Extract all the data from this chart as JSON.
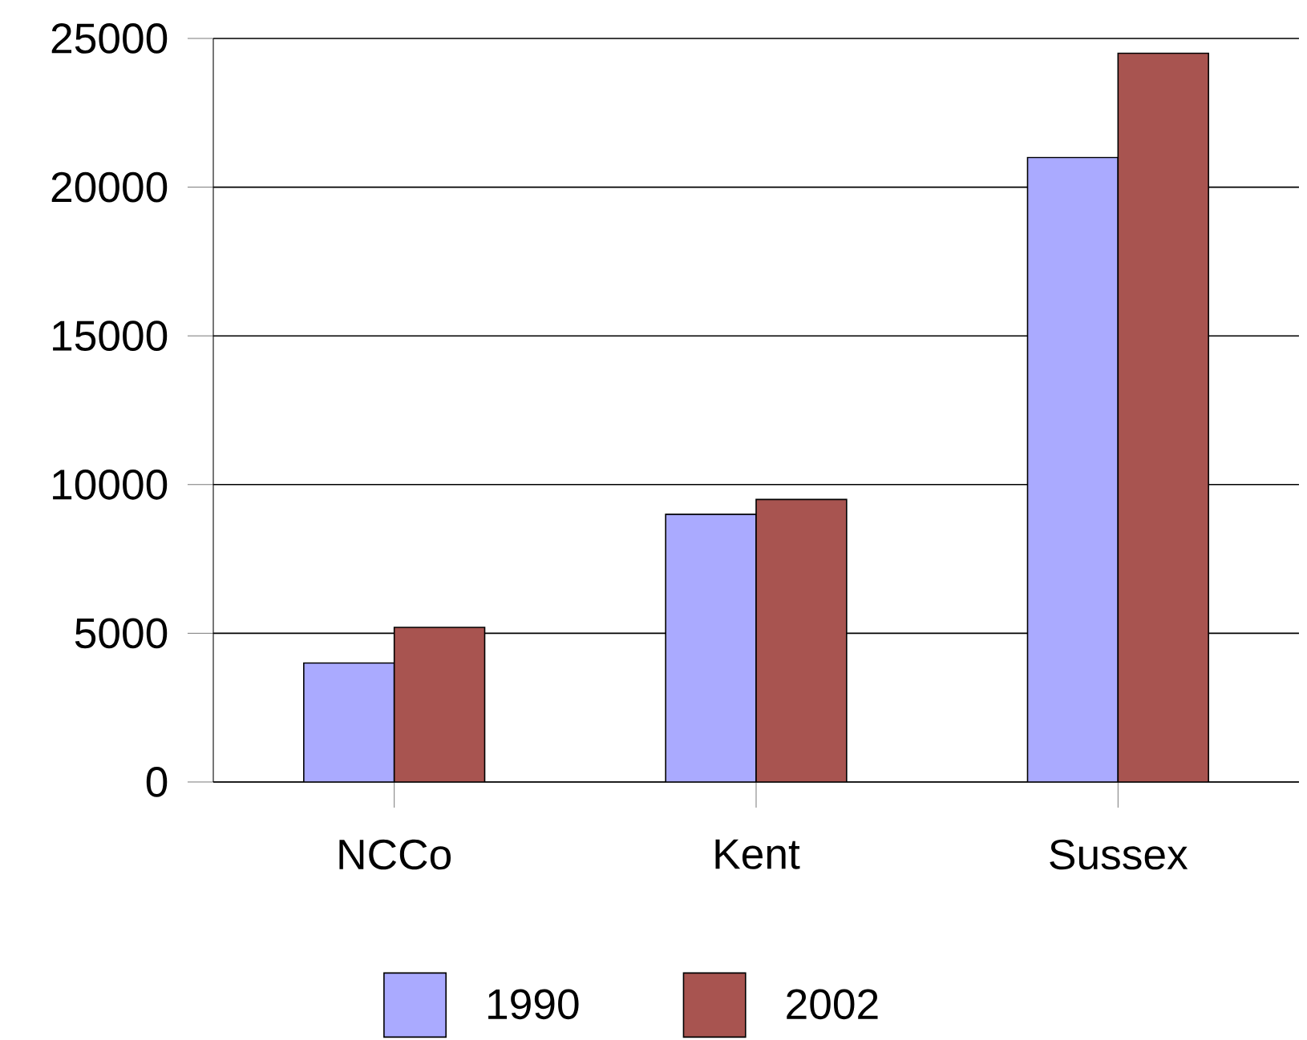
{
  "chart_data": {
    "type": "bar",
    "categories": [
      "NCCo",
      "Kent",
      "Sussex"
    ],
    "series": [
      {
        "name": "1990",
        "color": "#aaaaff",
        "values": [
          4000,
          9000,
          21000
        ]
      },
      {
        "name": "2002",
        "color": "#a85450",
        "values": [
          5200,
          9500,
          24500
        ]
      }
    ],
    "ylim": [
      0,
      25000
    ],
    "yticks": [
      0,
      5000,
      10000,
      15000,
      20000,
      25000
    ],
    "grid": "y",
    "legend": "bottom"
  }
}
